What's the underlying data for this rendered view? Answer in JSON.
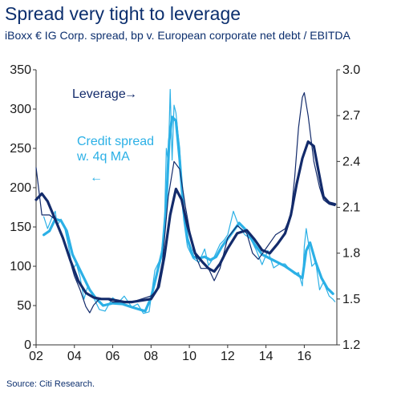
{
  "title": "Spread very tight to leverage",
  "subtitle": "iBoxx € IG Corp. spread, bp v. European corporate net debt / EBITDA",
  "source": "Source: Citi Research.",
  "colors": {
    "title": "#0c2f6e",
    "leverage": "#132b6b",
    "spread": "#2bb0e6"
  },
  "chart_data": {
    "type": "line",
    "x_ticks": [
      "02",
      "04",
      "06",
      "08",
      "10",
      "12",
      "14",
      "16"
    ],
    "xlim": [
      2002,
      2017.7
    ],
    "y_left": {
      "ylim": [
        0,
        350
      ],
      "ticks": [
        "0",
        "50",
        "100",
        "150",
        "200",
        "250",
        "300",
        "350"
      ]
    },
    "y_right": {
      "ylim": [
        1.2,
        3.0
      ],
      "ticks": [
        "1.2",
        "1.5",
        "1.8",
        "2.1",
        "2.4",
        "2.7",
        "3.0"
      ]
    },
    "annotations": {
      "leverage": "Leverage",
      "spread_line1": "Credit spread",
      "spread_line2": "w. 4q MA",
      "arrow_right": "→",
      "arrow_left": "←"
    },
    "series": [
      {
        "name": "Leverage",
        "axis": "right",
        "color": "#132b6b",
        "style": "thin",
        "x": [
          2002.0,
          2002.3,
          2002.7,
          2003.0,
          2003.3,
          2003.7,
          2004.0,
          2004.3,
          2004.6,
          2004.8,
          2005.0,
          2005.3,
          2005.7,
          2006.0,
          2006.5,
          2007.0,
          2007.5,
          2008.0,
          2008.3,
          2008.6,
          2008.9,
          2009.2,
          2009.5,
          2009.8,
          2010.2,
          2010.6,
          2011.0,
          2011.3,
          2011.6,
          2012.0,
          2012.5,
          2013.0,
          2013.3,
          2013.6,
          2014.0,
          2014.5,
          2015.0,
          2015.3,
          2015.5,
          2015.7,
          2015.9,
          2016.0,
          2016.2,
          2016.5,
          2016.8,
          2017.0,
          2017.3,
          2017.6
        ],
        "y": [
          2.36,
          2.05,
          2.05,
          2.02,
          1.93,
          1.78,
          1.65,
          1.56,
          1.45,
          1.41,
          1.46,
          1.5,
          1.5,
          1.48,
          1.48,
          1.48,
          1.5,
          1.52,
          1.56,
          1.75,
          2.17,
          2.4,
          2.35,
          2.1,
          1.82,
          1.7,
          1.7,
          1.62,
          1.7,
          1.9,
          1.98,
          1.93,
          1.8,
          1.76,
          1.83,
          1.92,
          1.96,
          2.05,
          2.3,
          2.62,
          2.82,
          2.85,
          2.7,
          2.4,
          2.23,
          2.15,
          2.12,
          2.11
        ]
      },
      {
        "name": "Leverage 4q MA",
        "axis": "right",
        "color": "#132b6b",
        "style": "thick",
        "x": [
          2002.0,
          2002.3,
          2002.6,
          2003.0,
          2003.4,
          2003.8,
          2004.2,
          2004.6,
          2005.0,
          2005.4,
          2005.8,
          2006.2,
          2006.6,
          2007.0,
          2007.5,
          2008.0,
          2008.4,
          2008.7,
          2009.0,
          2009.3,
          2009.6,
          2009.9,
          2010.3,
          2010.7,
          2011.0,
          2011.3,
          2011.6,
          2012.0,
          2012.5,
          2013.0,
          2013.4,
          2013.8,
          2014.2,
          2014.6,
          2015.0,
          2015.3,
          2015.6,
          2015.9,
          2016.2,
          2016.5,
          2016.8,
          2017.0,
          2017.3,
          2017.6
        ],
        "y": [
          2.15,
          2.19,
          2.14,
          2.02,
          1.9,
          1.75,
          1.62,
          1.54,
          1.51,
          1.5,
          1.5,
          1.49,
          1.48,
          1.48,
          1.49,
          1.5,
          1.58,
          1.78,
          2.05,
          2.22,
          2.15,
          1.98,
          1.8,
          1.74,
          1.7,
          1.68,
          1.73,
          1.83,
          1.93,
          1.95,
          1.89,
          1.82,
          1.8,
          1.86,
          1.93,
          2.05,
          2.25,
          2.42,
          2.53,
          2.5,
          2.3,
          2.17,
          2.13,
          2.12
        ]
      },
      {
        "name": "Credit spread",
        "axis": "left",
        "color": "#2bb0e6",
        "style": "thin",
        "x": [
          2002.4,
          2002.6,
          2002.8,
          2003.0,
          2003.1,
          2003.3,
          2003.5,
          2003.7,
          2003.9,
          2004.1,
          2004.3,
          2004.5,
          2004.7,
          2005.0,
          2005.3,
          2005.6,
          2006.0,
          2006.3,
          2006.6,
          2007.0,
          2007.3,
          2007.6,
          2007.9,
          2008.2,
          2008.5,
          2008.7,
          2008.8,
          2008.9,
          2009.0,
          2009.1,
          2009.2,
          2009.3,
          2009.4,
          2009.5,
          2009.7,
          2009.9,
          2010.2,
          2010.5,
          2010.8,
          2011.0,
          2011.3,
          2011.6,
          2011.8,
          2012.0,
          2012.3,
          2012.6,
          2012.9,
          2013.2,
          2013.5,
          2013.8,
          2014.1,
          2014.4,
          2014.7,
          2015.0,
          2015.3,
          2015.5,
          2015.7,
          2015.9,
          2016.0,
          2016.1,
          2016.2,
          2016.4,
          2016.6,
          2016.8,
          2017.0,
          2017.3,
          2017.5,
          2017.6
        ],
        "y": [
          163,
          148,
          160,
          170,
          152,
          160,
          148,
          125,
          96,
          103,
          86,
          58,
          75,
          60,
          45,
          43,
          60,
          54,
          62,
          48,
          52,
          40,
          42,
          95,
          110,
          150,
          250,
          232,
          325,
          235,
          305,
          295,
          270,
          250,
          160,
          125,
          110,
          105,
          122,
          101,
          112,
          128,
          133,
          140,
          170,
          150,
          140,
          135,
          120,
          102,
          120,
          98,
          103,
          103,
          94,
          90,
          92,
          75,
          125,
          148,
          132,
          100,
          105,
          70,
          80,
          62,
          58,
          55
        ]
      },
      {
        "name": "Credit spread 4q MA",
        "axis": "left",
        "color": "#2bb0e6",
        "style": "thick",
        "x": [
          2002.4,
          2002.7,
          2003.0,
          2003.3,
          2003.6,
          2003.9,
          2004.2,
          2004.5,
          2004.8,
          2005.1,
          2005.5,
          2006.0,
          2006.5,
          2007.0,
          2007.4,
          2007.7,
          2008.0,
          2008.3,
          2008.6,
          2008.8,
          2008.95,
          2009.1,
          2009.3,
          2009.5,
          2009.7,
          2009.9,
          2010.2,
          2010.5,
          2010.8,
          2011.1,
          2011.4,
          2011.7,
          2012.0,
          2012.3,
          2012.6,
          2013.0,
          2013.4,
          2013.8,
          2014.2,
          2014.6,
          2015.0,
          2015.3,
          2015.6,
          2015.9,
          2016.1,
          2016.3,
          2016.6,
          2016.9,
          2017.2,
          2017.5
        ],
        "y": [
          140,
          145,
          160,
          158,
          145,
          115,
          100,
          85,
          70,
          60,
          50,
          53,
          52,
          48,
          45,
          43,
          60,
          90,
          120,
          180,
          260,
          290,
          285,
          235,
          170,
          135,
          112,
          110,
          112,
          108,
          112,
          125,
          135,
          145,
          155,
          145,
          128,
          115,
          110,
          105,
          100,
          95,
          90,
          85,
          120,
          130,
          105,
          85,
          72,
          65
        ]
      }
    ]
  }
}
